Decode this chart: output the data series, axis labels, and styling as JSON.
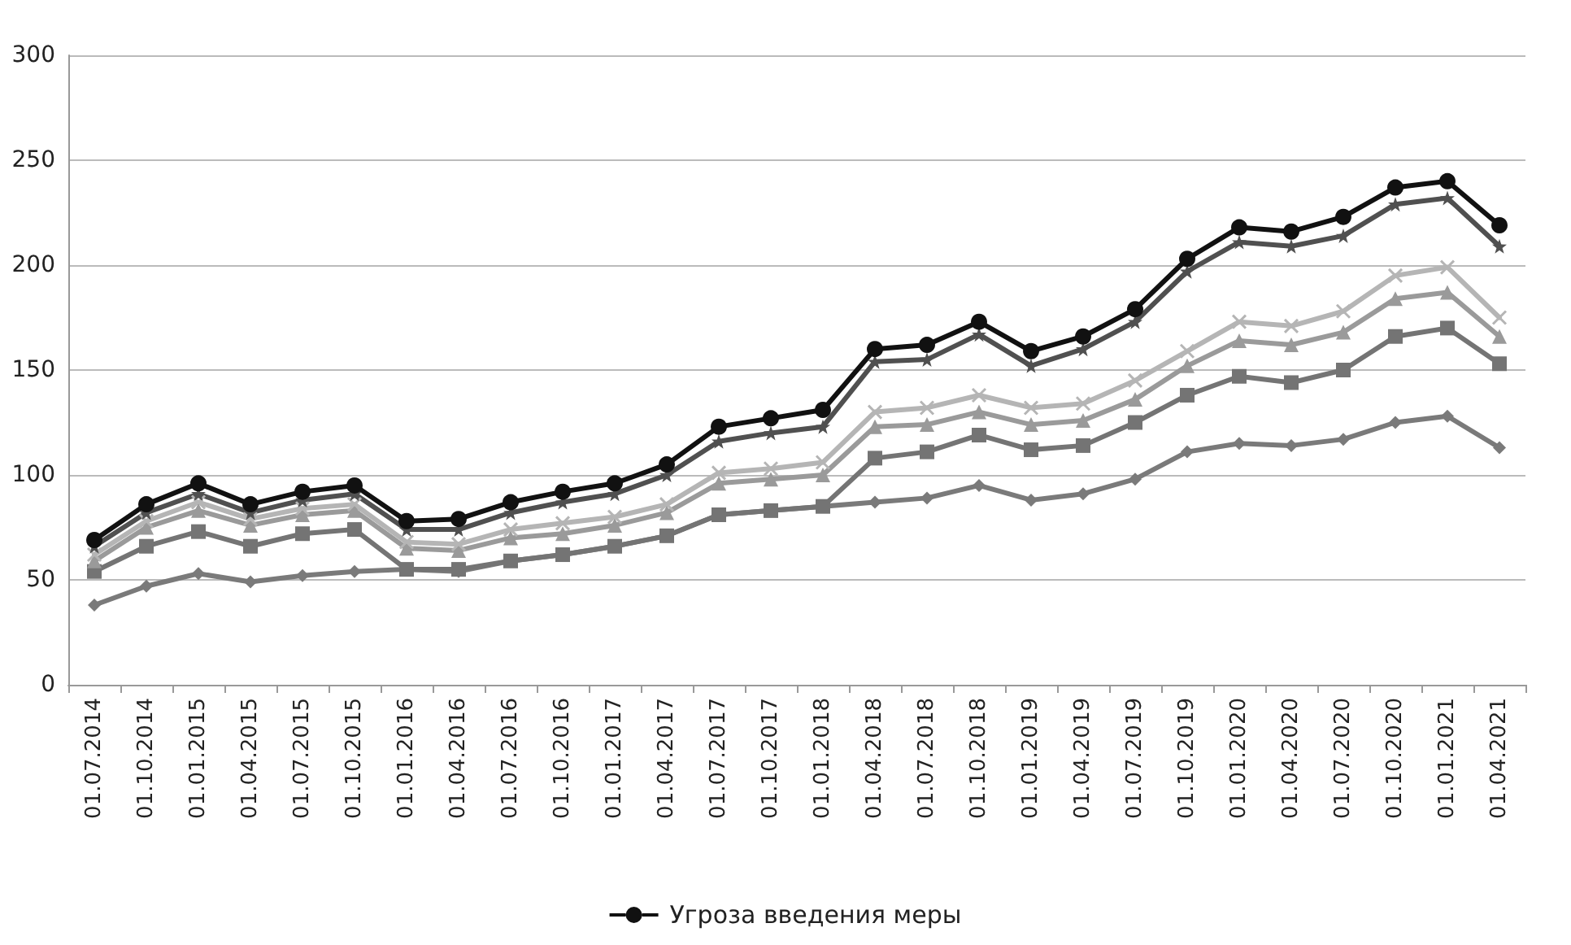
{
  "chart_data": {
    "type": "line",
    "categories": [
      "01.07.2014",
      "01.10.2014",
      "01.01.2015",
      "01.04.2015",
      "01.07.2015",
      "01.10.2015",
      "01.01.2016",
      "01.04.2016",
      "01.07.2016",
      "01.10.2016",
      "01.01.2017",
      "01.04.2017",
      "01.07.2017",
      "01.10.2017",
      "01.01.2018",
      "01.04.2018",
      "01.07.2018",
      "01.10.2018",
      "01.01.2019",
      "01.04.2019",
      "01.07.2019",
      "01.10.2019",
      "01.01.2020",
      "01.04.2020",
      "01.07.2020",
      "01.10.2020",
      "01.01.2021",
      "01.04.2021"
    ],
    "series": [
      {
        "color": "#7a7a7a",
        "marker": "diamond",
        "values": [
          38,
          47,
          53,
          49,
          52,
          54,
          55,
          54,
          59,
          62,
          66,
          71,
          81,
          83,
          85,
          87,
          89,
          95,
          88,
          91,
          98,
          111,
          115,
          114,
          117,
          125,
          128,
          113
        ]
      },
      {
        "color": "#747474",
        "marker": "square",
        "values": [
          54,
          66,
          73,
          66,
          72,
          74,
          55,
          55,
          59,
          62,
          66,
          71,
          81,
          83,
          85,
          108,
          111,
          119,
          112,
          114,
          125,
          138,
          147,
          144,
          150,
          166,
          170,
          153
        ]
      },
      {
        "color": "#9a9a9a",
        "marker": "triangle",
        "values": [
          59,
          75,
          83,
          76,
          81,
          83,
          65,
          64,
          70,
          72,
          76,
          82,
          96,
          98,
          100,
          123,
          124,
          130,
          124,
          126,
          136,
          152,
          164,
          162,
          168,
          184,
          187,
          166
        ]
      },
      {
        "color": "#b5b5b5",
        "marker": "cross",
        "values": [
          62,
          78,
          87,
          79,
          84,
          86,
          68,
          67,
          74,
          77,
          80,
          86,
          101,
          103,
          106,
          130,
          132,
          138,
          132,
          134,
          145,
          159,
          173,
          171,
          178,
          195,
          199,
          175
        ]
      },
      {
        "color": "#505050",
        "marker": "star",
        "values": [
          66,
          82,
          91,
          82,
          88,
          91,
          74,
          74,
          82,
          87,
          91,
          100,
          116,
          120,
          123,
          154,
          155,
          167,
          152,
          160,
          173,
          197,
          211,
          209,
          214,
          229,
          232,
          209
        ]
      },
      {
        "name": "Угроза введения меры",
        "color": "#111111",
        "marker": "circle",
        "values": [
          69,
          86,
          96,
          86,
          92,
          95,
          78,
          79,
          87,
          92,
          96,
          105,
          123,
          127,
          131,
          160,
          162,
          173,
          159,
          166,
          179,
          203,
          218,
          216,
          223,
          237,
          240,
          219
        ]
      }
    ],
    "ylim": [
      0,
      300
    ],
    "yticks": [
      0,
      50,
      100,
      150,
      200,
      250,
      300
    ],
    "grid": "y",
    "legend": "bottom",
    "line_style": "solid"
  }
}
